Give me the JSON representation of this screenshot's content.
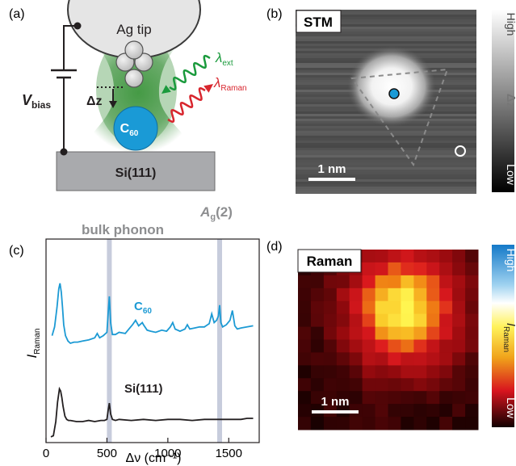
{
  "panel_a": {
    "label": "(a)",
    "tip_label": "Ag tip",
    "v_bias_main": "V",
    "v_bias_sub": "bias",
    "dz_label": "Δz",
    "molecule_main": "C",
    "molecule_sub": "60",
    "substrate_label": "Si(111)",
    "lambda_ext_main": "λ",
    "lambda_ext_sub": "ext",
    "lambda_raman_main": "λ",
    "lambda_raman_sub": "Raman",
    "colors": {
      "green": "#1a9a3c",
      "red": "#d8262e",
      "blue": "#1a9ad6",
      "glow": "#2f8a2f"
    }
  },
  "panel_b": {
    "label": "(b)",
    "title": "STM",
    "scale_bar": "1 nm",
    "colorbar_high": "High",
    "colorbar_mid": "Δz",
    "colorbar_low": "Low"
  },
  "panel_c": {
    "label": "(c)",
    "ylabel_main": "I",
    "ylabel_sub": "Raman",
    "xlabel": "Δν (cm⁻¹)",
    "annotation_bulk": "bulk phonon",
    "annotation_ag_main": "A",
    "annotation_ag_sub": "g",
    "annotation_ag_tail": "(2)",
    "trace_c60_main": "C",
    "trace_c60_sub": "60",
    "trace_si": "Si(111)",
    "colors": {
      "c60": "#1c9ad4",
      "si": "#231f20",
      "band": "#c7ccdc"
    }
  },
  "chart_data": {
    "type": "line",
    "xlabel": "Δν (cm⁻¹)",
    "ylabel": "I_Raman",
    "xlim": [
      0,
      1750
    ],
    "xticks": [
      0,
      500,
      1000,
      1500
    ],
    "highlight_bands_x": [
      520,
      1425
    ],
    "series": [
      {
        "name": "C60",
        "x": [
          50,
          70,
          90,
          105,
          115,
          125,
          135,
          145,
          160,
          180,
          200,
          230,
          260,
          300,
          350,
          400,
          420,
          440,
          470,
          500,
          510,
          520,
          530,
          545,
          570,
          600,
          650,
          680,
          710,
          735,
          760,
          790,
          800,
          830,
          860,
          900,
          950,
          990,
          1020,
          1040,
          1060,
          1100,
          1140,
          1160,
          1180,
          1220,
          1260,
          1300,
          1340,
          1360,
          1380,
          1400,
          1415,
          1425,
          1435,
          1450,
          1480,
          1510,
          1530,
          1550,
          1570,
          1600,
          1650,
          1700
        ],
        "values": [
          0.52,
          0.6,
          0.78,
          0.95,
          1.0,
          0.92,
          0.78,
          0.62,
          0.52,
          0.47,
          0.45,
          0.46,
          0.46,
          0.47,
          0.48,
          0.5,
          0.54,
          0.5,
          0.52,
          0.55,
          0.72,
          0.88,
          0.64,
          0.53,
          0.53,
          0.55,
          0.54,
          0.58,
          0.62,
          0.66,
          0.61,
          0.64,
          0.62,
          0.57,
          0.56,
          0.55,
          0.57,
          0.56,
          0.6,
          0.64,
          0.58,
          0.56,
          0.58,
          0.62,
          0.58,
          0.59,
          0.6,
          0.6,
          0.63,
          0.72,
          0.64,
          0.66,
          0.7,
          0.8,
          0.64,
          0.6,
          0.62,
          0.66,
          0.75,
          0.61,
          0.58,
          0.59,
          0.6,
          0.61
        ]
      },
      {
        "name": "Si(111)",
        "x": [
          40,
          60,
          80,
          95,
          110,
          120,
          130,
          140,
          155,
          170,
          185,
          200,
          250,
          300,
          350,
          400,
          450,
          480,
          500,
          510,
          520,
          530,
          545,
          570,
          600,
          700,
          800,
          900,
          1000,
          1100,
          1200,
          1300,
          1400,
          1500,
          1600,
          1650,
          1700
        ],
        "values": [
          0.06,
          0.07,
          0.2,
          0.38,
          0.5,
          0.48,
          0.42,
          0.34,
          0.25,
          0.22,
          0.21,
          0.21,
          0.2,
          0.2,
          0.21,
          0.2,
          0.21,
          0.21,
          0.22,
          0.3,
          0.37,
          0.27,
          0.22,
          0.21,
          0.22,
          0.21,
          0.22,
          0.21,
          0.22,
          0.22,
          0.21,
          0.22,
          0.22,
          0.22,
          0.22,
          0.23,
          0.23
        ]
      }
    ]
  },
  "panel_d": {
    "label": "(d)",
    "title": "Raman",
    "scale_bar": "1 nm",
    "colorbar_high": "High",
    "colorbar_mid_main": "I",
    "colorbar_mid_sub": "Raman",
    "colorbar_low": "Low"
  }
}
